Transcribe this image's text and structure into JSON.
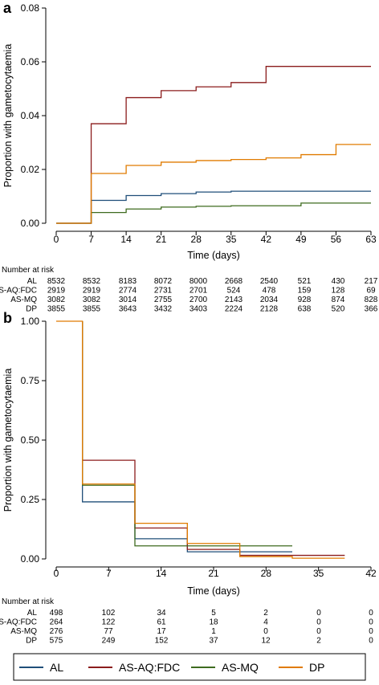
{
  "colors": {
    "AL": "#1f4e79",
    "AS-AQ:FDC": "#8b1c1c",
    "AS-MQ": "#3e6b1f",
    "DP": "#e07b00",
    "axis": "#000000",
    "legend_border": "#000000"
  },
  "legend": {
    "items": [
      {
        "series": "AL",
        "label": "AL"
      },
      {
        "series": "AS-AQ:FDC",
        "label": "AS-AQ:FDC"
      },
      {
        "series": "AS-MQ",
        "label": "AS-MQ"
      },
      {
        "series": "DP",
        "label": "DP"
      }
    ]
  },
  "chart_data": [
    {
      "panel": "a",
      "type": "line",
      "step": true,
      "xlabel": "Time (days)",
      "ylabel": "Proportion with gametocytaemia",
      "xlim": [
        0,
        63
      ],
      "ylim": [
        0,
        0.08
      ],
      "xticks": [
        0,
        7,
        14,
        21,
        28,
        35,
        42,
        49,
        56,
        63
      ],
      "yticks": [
        0,
        0.02,
        0.04,
        0.06,
        0.08
      ],
      "ytick_labels": [
        "0.00",
        "0.02",
        "0.04",
        "0.06",
        "0.08"
      ],
      "grid": false,
      "series": [
        {
          "name": "AL",
          "x": [
            0,
            7,
            14,
            21,
            28,
            35,
            42,
            49,
            56,
            63
          ],
          "y": [
            0,
            0.0085,
            0.0103,
            0.011,
            0.0116,
            0.0119,
            0.0119,
            0.0119,
            0.0119,
            0.0119
          ]
        },
        {
          "name": "AS-AQ:FDC",
          "x": [
            0,
            7,
            14,
            21,
            28,
            35,
            42,
            49,
            56,
            63
          ],
          "y": [
            0,
            0.037,
            0.0467,
            0.0493,
            0.0507,
            0.0523,
            0.0583,
            0.0583,
            0.0583,
            0.0583
          ]
        },
        {
          "name": "AS-MQ",
          "x": [
            0,
            7,
            14,
            21,
            28,
            35,
            42,
            49,
            56,
            63
          ],
          "y": [
            0,
            0.004,
            0.0053,
            0.006,
            0.0063,
            0.0065,
            0.0065,
            0.0075,
            0.0075,
            0.0075
          ]
        },
        {
          "name": "DP",
          "x": [
            0,
            7,
            14,
            21,
            28,
            35,
            42,
            49,
            56,
            63
          ],
          "y": [
            0,
            0.0185,
            0.0215,
            0.0227,
            0.0233,
            0.0237,
            0.0243,
            0.0255,
            0.0293,
            0.0293
          ]
        }
      ],
      "risk_table": {
        "title": "Number at risk",
        "columns": [
          0,
          7,
          14,
          21,
          28,
          35,
          42,
          49,
          56,
          63
        ],
        "rows": [
          {
            "label": "AL",
            "values": [
              "8532",
              "8532",
              "8183",
              "8072",
              "8000",
              "2668",
              "2540",
              "521",
              "430",
              "217"
            ]
          },
          {
            "label": "AS-AQ:FDC",
            "values": [
              "2919",
              "2919",
              "2774",
              "2731",
              "2701",
              "524",
              "478",
              "159",
              "128",
              "69"
            ]
          },
          {
            "label": "AS-MQ",
            "values": [
              "3082",
              "3082",
              "3014",
              "2755",
              "2700",
              "2143",
              "2034",
              "928",
              "874",
              "828"
            ]
          },
          {
            "label": "DP",
            "values": [
              "3855",
              "3855",
              "3643",
              "3432",
              "3403",
              "2224",
              "2128",
              "638",
              "520",
              "366"
            ]
          }
        ]
      }
    },
    {
      "panel": "b",
      "type": "line",
      "step": true,
      "xlabel": "Time (days)",
      "ylabel": "Proportion with gametocytaemia",
      "xlim": [
        0,
        42
      ],
      "ylim": [
        0,
        1
      ],
      "xticks": [
        0,
        7,
        14,
        21,
        28,
        35,
        42
      ],
      "yticks": [
        0,
        0.25,
        0.5,
        0.75,
        1
      ],
      "ytick_labels": [
        "0.00",
        "0.25",
        "0.50",
        "0.75",
        "1.00"
      ],
      "grid": false,
      "series": [
        {
          "name": "AL",
          "x": [
            3.5,
            3.5,
            10.5,
            17.5,
            24.5
          ],
          "y": [
            1,
            0.24,
            0.085,
            0.03,
            0.03
          ]
        },
        {
          "name": "AS-AQ:FDC",
          "x": [
            3.5,
            3.5,
            10.5,
            17.5,
            24.5,
            31.5
          ],
          "y": [
            1,
            0.415,
            0.13,
            0.04,
            0.015,
            0.015
          ]
        },
        {
          "name": "AS-MQ",
          "x": [
            3.5,
            3.5,
            10.5,
            17.5,
            24.5
          ],
          "y": [
            1,
            0.31,
            0.055,
            0.055,
            0.055
          ]
        },
        {
          "name": "DP",
          "x": [
            0,
            3.5,
            10.5,
            17.5,
            24.5,
            31.5,
            38.5
          ],
          "y": [
            1,
            0.315,
            0.15,
            0.065,
            0.01,
            0.003,
            0.003
          ]
        }
      ],
      "risk_table": {
        "title": "Number at risk",
        "columns": [
          0,
          7,
          14,
          21,
          28,
          35,
          42
        ],
        "rows": [
          {
            "label": "AL",
            "values": [
              "498",
              "102",
              "34",
              "5",
              "2",
              "0",
              "0"
            ]
          },
          {
            "label": "AS-AQ:FDC",
            "values": [
              "264",
              "122",
              "61",
              "18",
              "4",
              "0",
              "0"
            ]
          },
          {
            "label": "AS-MQ",
            "values": [
              "276",
              "77",
              "17",
              "1",
              "0",
              "0",
              "0"
            ]
          },
          {
            "label": "DP",
            "values": [
              "575",
              "249",
              "152",
              "37",
              "12",
              "2",
              "0"
            ]
          }
        ]
      }
    }
  ]
}
